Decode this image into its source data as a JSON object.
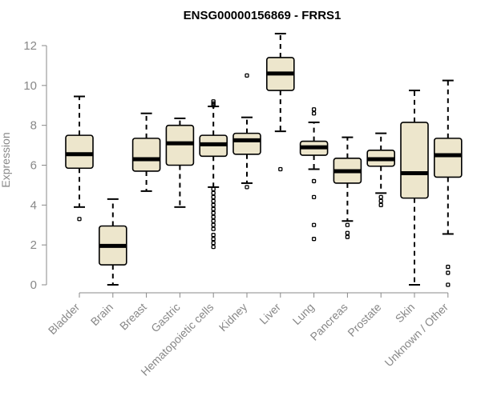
{
  "chart_data": {
    "type": "boxplot",
    "title": "ENSG00000156869 - FRRS1",
    "xlabel": "",
    "ylabel": "Expression",
    "ylim": [
      0,
      12
    ],
    "yticks": [
      0,
      2,
      4,
      6,
      8,
      10,
      12
    ],
    "box_color": "#ede6cc",
    "categories": [
      "Bladder",
      "Brain",
      "Breast",
      "Gastric",
      "Hematopoietic cells",
      "Kidney",
      "Liver",
      "Lung",
      "Pancreas",
      "Prostate",
      "Skin",
      "Unknown / Other"
    ],
    "boxes": [
      {
        "min": 3.9,
        "q1": 5.85,
        "median": 6.55,
        "q3": 7.5,
        "max": 9.45,
        "outliers": [
          3.3
        ]
      },
      {
        "min": 0.0,
        "q1": 1.0,
        "median": 1.95,
        "q3": 2.95,
        "max": 4.3,
        "outliers": []
      },
      {
        "min": 4.7,
        "q1": 5.7,
        "median": 6.3,
        "q3": 7.35,
        "max": 8.6,
        "outliers": []
      },
      {
        "min": 3.9,
        "q1": 6.0,
        "median": 7.1,
        "q3": 8.0,
        "max": 8.35,
        "outliers": []
      },
      {
        "min": 4.9,
        "q1": 6.45,
        "median": 7.05,
        "q3": 7.5,
        "max": 8.95,
        "outliers": [
          9.1,
          9.2,
          9.0,
          4.8,
          4.6,
          4.4,
          4.2,
          4.0,
          3.8,
          3.6,
          3.4,
          3.2,
          3.0,
          2.8,
          2.5,
          2.3,
          2.1,
          1.9
        ]
      },
      {
        "min": 5.1,
        "q1": 6.55,
        "median": 7.25,
        "q3": 7.6,
        "max": 8.4,
        "outliers": [
          10.5,
          4.9
        ]
      },
      {
        "min": 7.7,
        "q1": 9.75,
        "median": 10.6,
        "q3": 11.4,
        "max": 12.6,
        "outliers": [
          5.8
        ]
      },
      {
        "min": 5.8,
        "q1": 6.5,
        "median": 6.9,
        "q3": 7.2,
        "max": 8.15,
        "outliers": [
          8.8,
          8.6,
          5.2,
          4.4,
          3.0,
          2.3
        ]
      },
      {
        "min": 3.2,
        "q1": 5.1,
        "median": 5.7,
        "q3": 6.35,
        "max": 7.4,
        "outliers": [
          3.0,
          2.6,
          2.4
        ]
      },
      {
        "min": 4.6,
        "q1": 5.95,
        "median": 6.3,
        "q3": 6.75,
        "max": 7.6,
        "outliers": [
          4.4,
          4.2,
          4.0
        ]
      },
      {
        "min": 0.0,
        "q1": 4.35,
        "median": 5.6,
        "q3": 8.15,
        "max": 9.75,
        "outliers": []
      },
      {
        "min": 2.55,
        "q1": 5.4,
        "median": 6.5,
        "q3": 7.35,
        "max": 10.25,
        "outliers": [
          0.9,
          0.6,
          0.0
        ]
      }
    ]
  }
}
